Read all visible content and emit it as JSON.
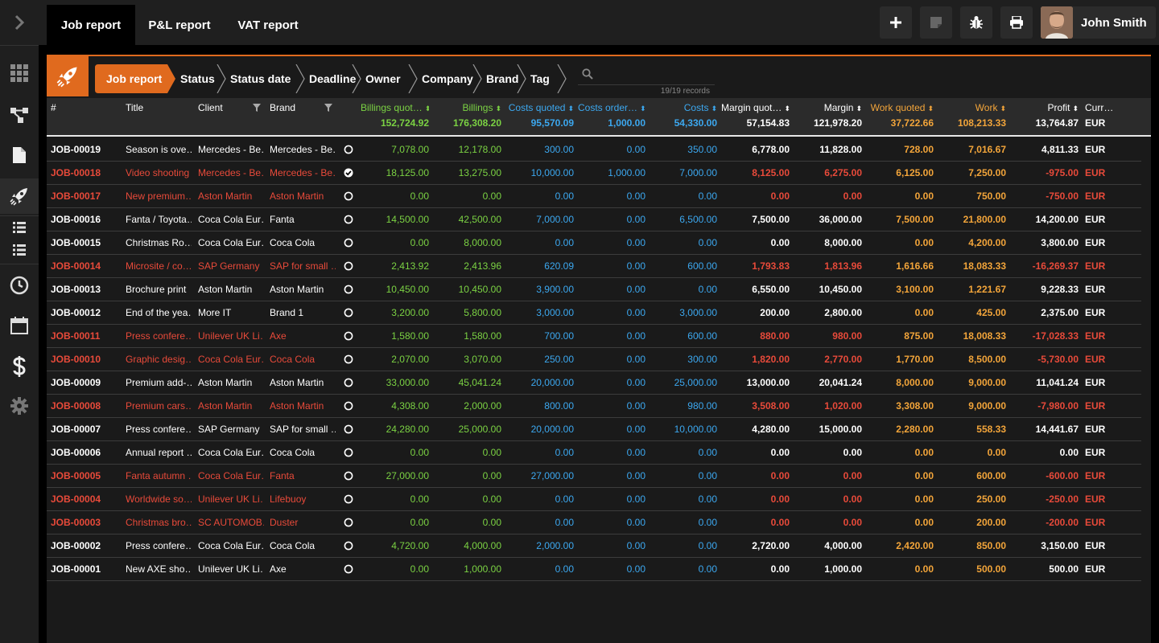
{
  "sidebar": {
    "items": [
      {
        "name": "expand",
        "icon": "chevron-right-icon"
      },
      {
        "name": "dashboard",
        "icon": "grid-icon"
      },
      {
        "name": "workflow",
        "icon": "workflow-icon"
      },
      {
        "name": "documents",
        "icon": "document-icon"
      },
      {
        "name": "reports",
        "icon": "rocket-icon"
      },
      {
        "name": "list-a",
        "icon": "list-icon"
      },
      {
        "name": "list-b",
        "icon": "list-icon"
      },
      {
        "name": "time",
        "icon": "clock-icon"
      },
      {
        "name": "calendar",
        "icon": "calendar-icon"
      },
      {
        "name": "finance",
        "icon": "dollar-icon"
      },
      {
        "name": "settings",
        "icon": "gear-icon"
      }
    ]
  },
  "topbar": {
    "tabs": [
      {
        "label": "Job report",
        "active": true
      },
      {
        "label": "P&L report",
        "active": false
      },
      {
        "label": "VAT report",
        "active": false
      }
    ],
    "actions": [
      {
        "icon": "plus-icon"
      },
      {
        "icon": "note-icon"
      },
      {
        "icon": "bug-icon"
      },
      {
        "icon": "print-icon"
      }
    ],
    "user": {
      "name": "John Smith"
    }
  },
  "filterbar": {
    "crumbs": [
      "Job report",
      "Status",
      "Status date",
      "Deadline",
      "Owner",
      "Company",
      "Brand",
      "Tag"
    ],
    "search": {
      "placeholder": "",
      "value": ""
    },
    "records": "19/19 records"
  },
  "colors": {
    "accent": "#e06a1e",
    "green": "#7bd243",
    "blue": "#3ca8f0",
    "orange": "#f3a53a",
    "red": "#e84a3a"
  },
  "table": {
    "columns": [
      {
        "key": "id",
        "label": "#"
      },
      {
        "key": "title",
        "label": "Title"
      },
      {
        "key": "client",
        "label": "Client",
        "filter": true
      },
      {
        "key": "brand",
        "label": "Brand",
        "filter": true
      },
      {
        "key": "status",
        "label": ""
      },
      {
        "key": "billings_quoted",
        "label": "Billings quot…",
        "total": "152,724.92",
        "color": "green",
        "sortable": true
      },
      {
        "key": "billings",
        "label": "Billings",
        "total": "176,308.20",
        "color": "green",
        "sortable": true
      },
      {
        "key": "costs_quoted",
        "label": "Costs quoted",
        "total": "95,570.09",
        "color": "blue",
        "sortable": true
      },
      {
        "key": "costs_ordered",
        "label": "Costs order…",
        "total": "1,000.00",
        "color": "blue",
        "sortable": true
      },
      {
        "key": "costs",
        "label": "Costs",
        "total": "54,330.00",
        "color": "blue",
        "sortable": true
      },
      {
        "key": "margin_quoted",
        "label": "Margin quot…",
        "total": "57,154.83",
        "color": "white",
        "sortable": true
      },
      {
        "key": "margin",
        "label": "Margin",
        "total": "121,978.20",
        "color": "white",
        "sortable": true
      },
      {
        "key": "work_quoted",
        "label": "Work quoted",
        "total": "37,722.66",
        "color": "orange",
        "sortable": true
      },
      {
        "key": "work",
        "label": "Work",
        "total": "108,213.33",
        "color": "orange",
        "sortable": true
      },
      {
        "key": "profit",
        "label": "Profit",
        "total": "13,764.87",
        "color": "white",
        "sortable": true
      },
      {
        "key": "currency",
        "label": "Curr…",
        "total": "EUR",
        "color": "white"
      }
    ],
    "rows": [
      {
        "id": "JOB-00019",
        "title": "Season is ove…",
        "client": "Mercedes - Be…",
        "brand": "Mercedes - Be…",
        "status": "open",
        "red": false,
        "billings_quoted": "7,078.00",
        "billings": "12,178.00",
        "costs_quoted": "300.00",
        "costs_ordered": "0.00",
        "costs": "350.00",
        "margin_quoted": "6,778.00",
        "margin": "11,828.00",
        "work_quoted": "728.00",
        "work": "7,016.67",
        "profit": "4,811.33",
        "currency": "EUR"
      },
      {
        "id": "JOB-00018",
        "title": "Video shooting",
        "client": "Mercedes - Be…",
        "brand": "Mercedes - Be…",
        "status": "done",
        "red": true,
        "billings_quoted": "18,125.00",
        "billings": "13,275.00",
        "costs_quoted": "10,000.00",
        "costs_ordered": "1,000.00",
        "costs": "7,000.00",
        "margin_quoted": "8,125.00",
        "margin": "6,275.00",
        "work_quoted": "6,125.00",
        "work": "7,250.00",
        "profit": "-975.00",
        "currency": "EUR"
      },
      {
        "id": "JOB-00017",
        "title": "New premium…",
        "client": "Aston Martin",
        "brand": "Aston Martin",
        "status": "open",
        "red": true,
        "billings_quoted": "0.00",
        "billings": "0.00",
        "costs_quoted": "0.00",
        "costs_ordered": "0.00",
        "costs": "0.00",
        "margin_quoted": "0.00",
        "margin": "0.00",
        "work_quoted": "0.00",
        "work": "750.00",
        "profit": "-750.00",
        "currency": "EUR"
      },
      {
        "id": "JOB-00016",
        "title": "Fanta / Toyota…",
        "client": "Coca Cola Eur…",
        "brand": "Fanta",
        "status": "open",
        "red": false,
        "billings_quoted": "14,500.00",
        "billings": "42,500.00",
        "costs_quoted": "7,000.00",
        "costs_ordered": "0.00",
        "costs": "6,500.00",
        "margin_quoted": "7,500.00",
        "margin": "36,000.00",
        "work_quoted": "7,500.00",
        "work": "21,800.00",
        "profit": "14,200.00",
        "currency": "EUR"
      },
      {
        "id": "JOB-00015",
        "title": "Christmas Ro…",
        "client": "Coca Cola Eur…",
        "brand": "Coca Cola",
        "status": "open",
        "red": false,
        "billings_quoted": "0.00",
        "billings": "8,000.00",
        "costs_quoted": "0.00",
        "costs_ordered": "0.00",
        "costs": "0.00",
        "margin_quoted": "0.00",
        "margin": "8,000.00",
        "work_quoted": "0.00",
        "work": "4,200.00",
        "profit": "3,800.00",
        "currency": "EUR"
      },
      {
        "id": "JOB-00014",
        "title": "Microsite / co…",
        "client": "SAP Germany",
        "brand": "SAP for small …",
        "status": "open",
        "red": true,
        "billings_quoted": "2,413.92",
        "billings": "2,413.96",
        "costs_quoted": "620.09",
        "costs_ordered": "0.00",
        "costs": "600.00",
        "margin_quoted": "1,793.83",
        "margin": "1,813.96",
        "work_quoted": "1,616.66",
        "work": "18,083.33",
        "profit": "-16,269.37",
        "currency": "EUR"
      },
      {
        "id": "JOB-00013",
        "title": "Brochure print",
        "client": "Aston Martin",
        "brand": "Aston Martin",
        "status": "open",
        "red": false,
        "billings_quoted": "10,450.00",
        "billings": "10,450.00",
        "costs_quoted": "3,900.00",
        "costs_ordered": "0.00",
        "costs": "0.00",
        "margin_quoted": "6,550.00",
        "margin": "10,450.00",
        "work_quoted": "3,100.00",
        "work": "1,221.67",
        "profit": "9,228.33",
        "currency": "EUR"
      },
      {
        "id": "JOB-00012",
        "title": "End of the yea…",
        "client": "More IT",
        "brand": "Brand 1",
        "status": "open",
        "red": false,
        "billings_quoted": "3,200.00",
        "billings": "5,800.00",
        "costs_quoted": "3,000.00",
        "costs_ordered": "0.00",
        "costs": "3,000.00",
        "margin_quoted": "200.00",
        "margin": "2,800.00",
        "work_quoted": "0.00",
        "work": "425.00",
        "profit": "2,375.00",
        "currency": "EUR"
      },
      {
        "id": "JOB-00011",
        "title": "Press confere…",
        "client": "Unilever UK Li…",
        "brand": "Axe",
        "status": "open",
        "red": true,
        "billings_quoted": "1,580.00",
        "billings": "1,580.00",
        "costs_quoted": "700.00",
        "costs_ordered": "0.00",
        "costs": "600.00",
        "margin_quoted": "880.00",
        "margin": "980.00",
        "work_quoted": "875.00",
        "work": "18,008.33",
        "profit": "-17,028.33",
        "currency": "EUR"
      },
      {
        "id": "JOB-00010",
        "title": "Graphic desig…",
        "client": "Coca Cola Eur…",
        "brand": "Coca Cola",
        "status": "open",
        "red": true,
        "billings_quoted": "2,070.00",
        "billings": "3,070.00",
        "costs_quoted": "250.00",
        "costs_ordered": "0.00",
        "costs": "300.00",
        "margin_quoted": "1,820.00",
        "margin": "2,770.00",
        "work_quoted": "1,770.00",
        "work": "8,500.00",
        "profit": "-5,730.00",
        "currency": "EUR"
      },
      {
        "id": "JOB-00009",
        "title": "Premium add-…",
        "client": "Aston Martin",
        "brand": "Aston Martin",
        "status": "open",
        "red": false,
        "billings_quoted": "33,000.00",
        "billings": "45,041.24",
        "costs_quoted": "20,000.00",
        "costs_ordered": "0.00",
        "costs": "25,000.00",
        "margin_quoted": "13,000.00",
        "margin": "20,041.24",
        "work_quoted": "8,000.00",
        "work": "9,000.00",
        "profit": "11,041.24",
        "currency": "EUR"
      },
      {
        "id": "JOB-00008",
        "title": "Premium cars…",
        "client": "Aston Martin",
        "brand": "Aston Martin",
        "status": "open",
        "red": true,
        "billings_quoted": "4,308.00",
        "billings": "2,000.00",
        "costs_quoted": "800.00",
        "costs_ordered": "0.00",
        "costs": "980.00",
        "margin_quoted": "3,508.00",
        "margin": "1,020.00",
        "work_quoted": "3,308.00",
        "work": "9,000.00",
        "profit": "-7,980.00",
        "currency": "EUR"
      },
      {
        "id": "JOB-00007",
        "title": "Press confere…",
        "client": "SAP Germany",
        "brand": "SAP for small …",
        "status": "open",
        "red": false,
        "billings_quoted": "24,280.00",
        "billings": "25,000.00",
        "costs_quoted": "20,000.00",
        "costs_ordered": "0.00",
        "costs": "10,000.00",
        "margin_quoted": "4,280.00",
        "margin": "15,000.00",
        "work_quoted": "2,280.00",
        "work": "558.33",
        "profit": "14,441.67",
        "currency": "EUR"
      },
      {
        "id": "JOB-00006",
        "title": "Annual report …",
        "client": "Coca Cola Eur…",
        "brand": "Coca Cola",
        "status": "open",
        "red": false,
        "billings_quoted": "0.00",
        "billings": "0.00",
        "costs_quoted": "0.00",
        "costs_ordered": "0.00",
        "costs": "0.00",
        "margin_quoted": "0.00",
        "margin": "0.00",
        "work_quoted": "0.00",
        "work": "0.00",
        "profit": "0.00",
        "currency": "EUR"
      },
      {
        "id": "JOB-00005",
        "title": "Fanta autumn …",
        "client": "Coca Cola Eur…",
        "brand": "Fanta",
        "status": "open",
        "red": true,
        "billings_quoted": "27,000.00",
        "billings": "0.00",
        "costs_quoted": "27,000.00",
        "costs_ordered": "0.00",
        "costs": "0.00",
        "margin_quoted": "0.00",
        "margin": "0.00",
        "work_quoted": "0.00",
        "work": "600.00",
        "profit": "-600.00",
        "currency": "EUR"
      },
      {
        "id": "JOB-00004",
        "title": "Worldwide so…",
        "client": "Unilever UK Li…",
        "brand": "Lifebuoy",
        "status": "open",
        "red": true,
        "billings_quoted": "0.00",
        "billings": "0.00",
        "costs_quoted": "0.00",
        "costs_ordered": "0.00",
        "costs": "0.00",
        "margin_quoted": "0.00",
        "margin": "0.00",
        "work_quoted": "0.00",
        "work": "250.00",
        "profit": "-250.00",
        "currency": "EUR"
      },
      {
        "id": "JOB-00003",
        "title": "Christmas bro…",
        "client": "SC AUTOMOB…",
        "brand": "Duster",
        "status": "open",
        "red": true,
        "billings_quoted": "0.00",
        "billings": "0.00",
        "costs_quoted": "0.00",
        "costs_ordered": "0.00",
        "costs": "0.00",
        "margin_quoted": "0.00",
        "margin": "0.00",
        "work_quoted": "0.00",
        "work": "200.00",
        "profit": "-200.00",
        "currency": "EUR"
      },
      {
        "id": "JOB-00002",
        "title": "Press confere…",
        "client": "Coca Cola Eur…",
        "brand": "Coca Cola",
        "status": "open",
        "red": false,
        "billings_quoted": "4,720.00",
        "billings": "4,000.00",
        "costs_quoted": "2,000.00",
        "costs_ordered": "0.00",
        "costs": "0.00",
        "margin_quoted": "2,720.00",
        "margin": "4,000.00",
        "work_quoted": "2,420.00",
        "work": "850.00",
        "profit": "3,150.00",
        "currency": "EUR"
      },
      {
        "id": "JOB-00001",
        "title": "New AXE sho…",
        "client": "Unilever UK Li…",
        "brand": "Axe",
        "status": "open",
        "red": false,
        "billings_quoted": "0.00",
        "billings": "1,000.00",
        "costs_quoted": "0.00",
        "costs_ordered": "0.00",
        "costs": "0.00",
        "margin_quoted": "0.00",
        "margin": "1,000.00",
        "work_quoted": "0.00",
        "work": "500.00",
        "profit": "500.00",
        "currency": "EUR"
      }
    ]
  }
}
